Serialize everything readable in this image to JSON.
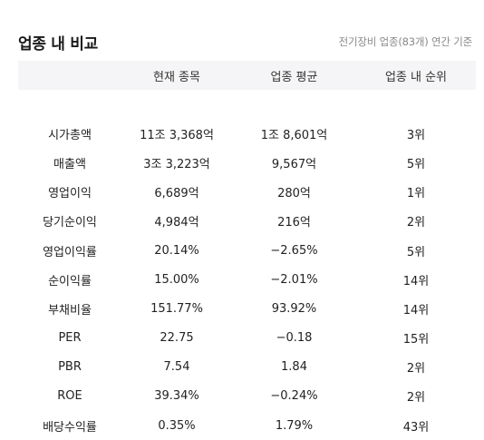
{
  "header": {
    "title": "업종 내 비교",
    "subtitle": "전기장비 업종(83개) 연간 기준"
  },
  "table": {
    "columns": [
      "",
      "현재 종목",
      "업종 평균",
      "업종 내 순위"
    ],
    "rows": [
      {
        "metric": "시가총액",
        "current": "11조 3,368억",
        "average": "1조 8,601억",
        "rank": "3위",
        "average_negative": false
      },
      {
        "metric": "매출액",
        "current": "3조 3,223억",
        "average": "9,567억",
        "rank": "5위",
        "average_negative": false
      },
      {
        "metric": "영업이익",
        "current": "6,689억",
        "average": "280억",
        "rank": "1위",
        "average_negative": false
      },
      {
        "metric": "당기순이익",
        "current": "4,984억",
        "average": "216억",
        "rank": "2위",
        "average_negative": false
      },
      {
        "metric": "영업이익률",
        "current": "20.14%",
        "average": "−2.65%",
        "rank": "5위",
        "average_negative": true
      },
      {
        "metric": "순이익률",
        "current": "15.00%",
        "average": "−2.01%",
        "rank": "14위",
        "average_negative": true
      },
      {
        "metric": "부채비율",
        "current": "151.77%",
        "average": "93.92%",
        "rank": "14위",
        "average_negative": false
      },
      {
        "metric": "PER",
        "current": "22.75",
        "average": "−0.18",
        "rank": "15위",
        "average_negative": true
      },
      {
        "metric": "PBR",
        "current": "7.54",
        "average": "1.84",
        "rank": "2위",
        "average_negative": false
      },
      {
        "metric": "ROE",
        "current": "39.34%",
        "average": "−0.24%",
        "rank": "2위",
        "average_negative": true
      },
      {
        "metric": "배당수익률",
        "current": "0.35%",
        "average": "1.79%",
        "rank": "43위",
        "average_negative": false
      }
    ]
  },
  "colors": {
    "negative": "#3b7bdb",
    "header_bg": "#f5f5f7"
  }
}
